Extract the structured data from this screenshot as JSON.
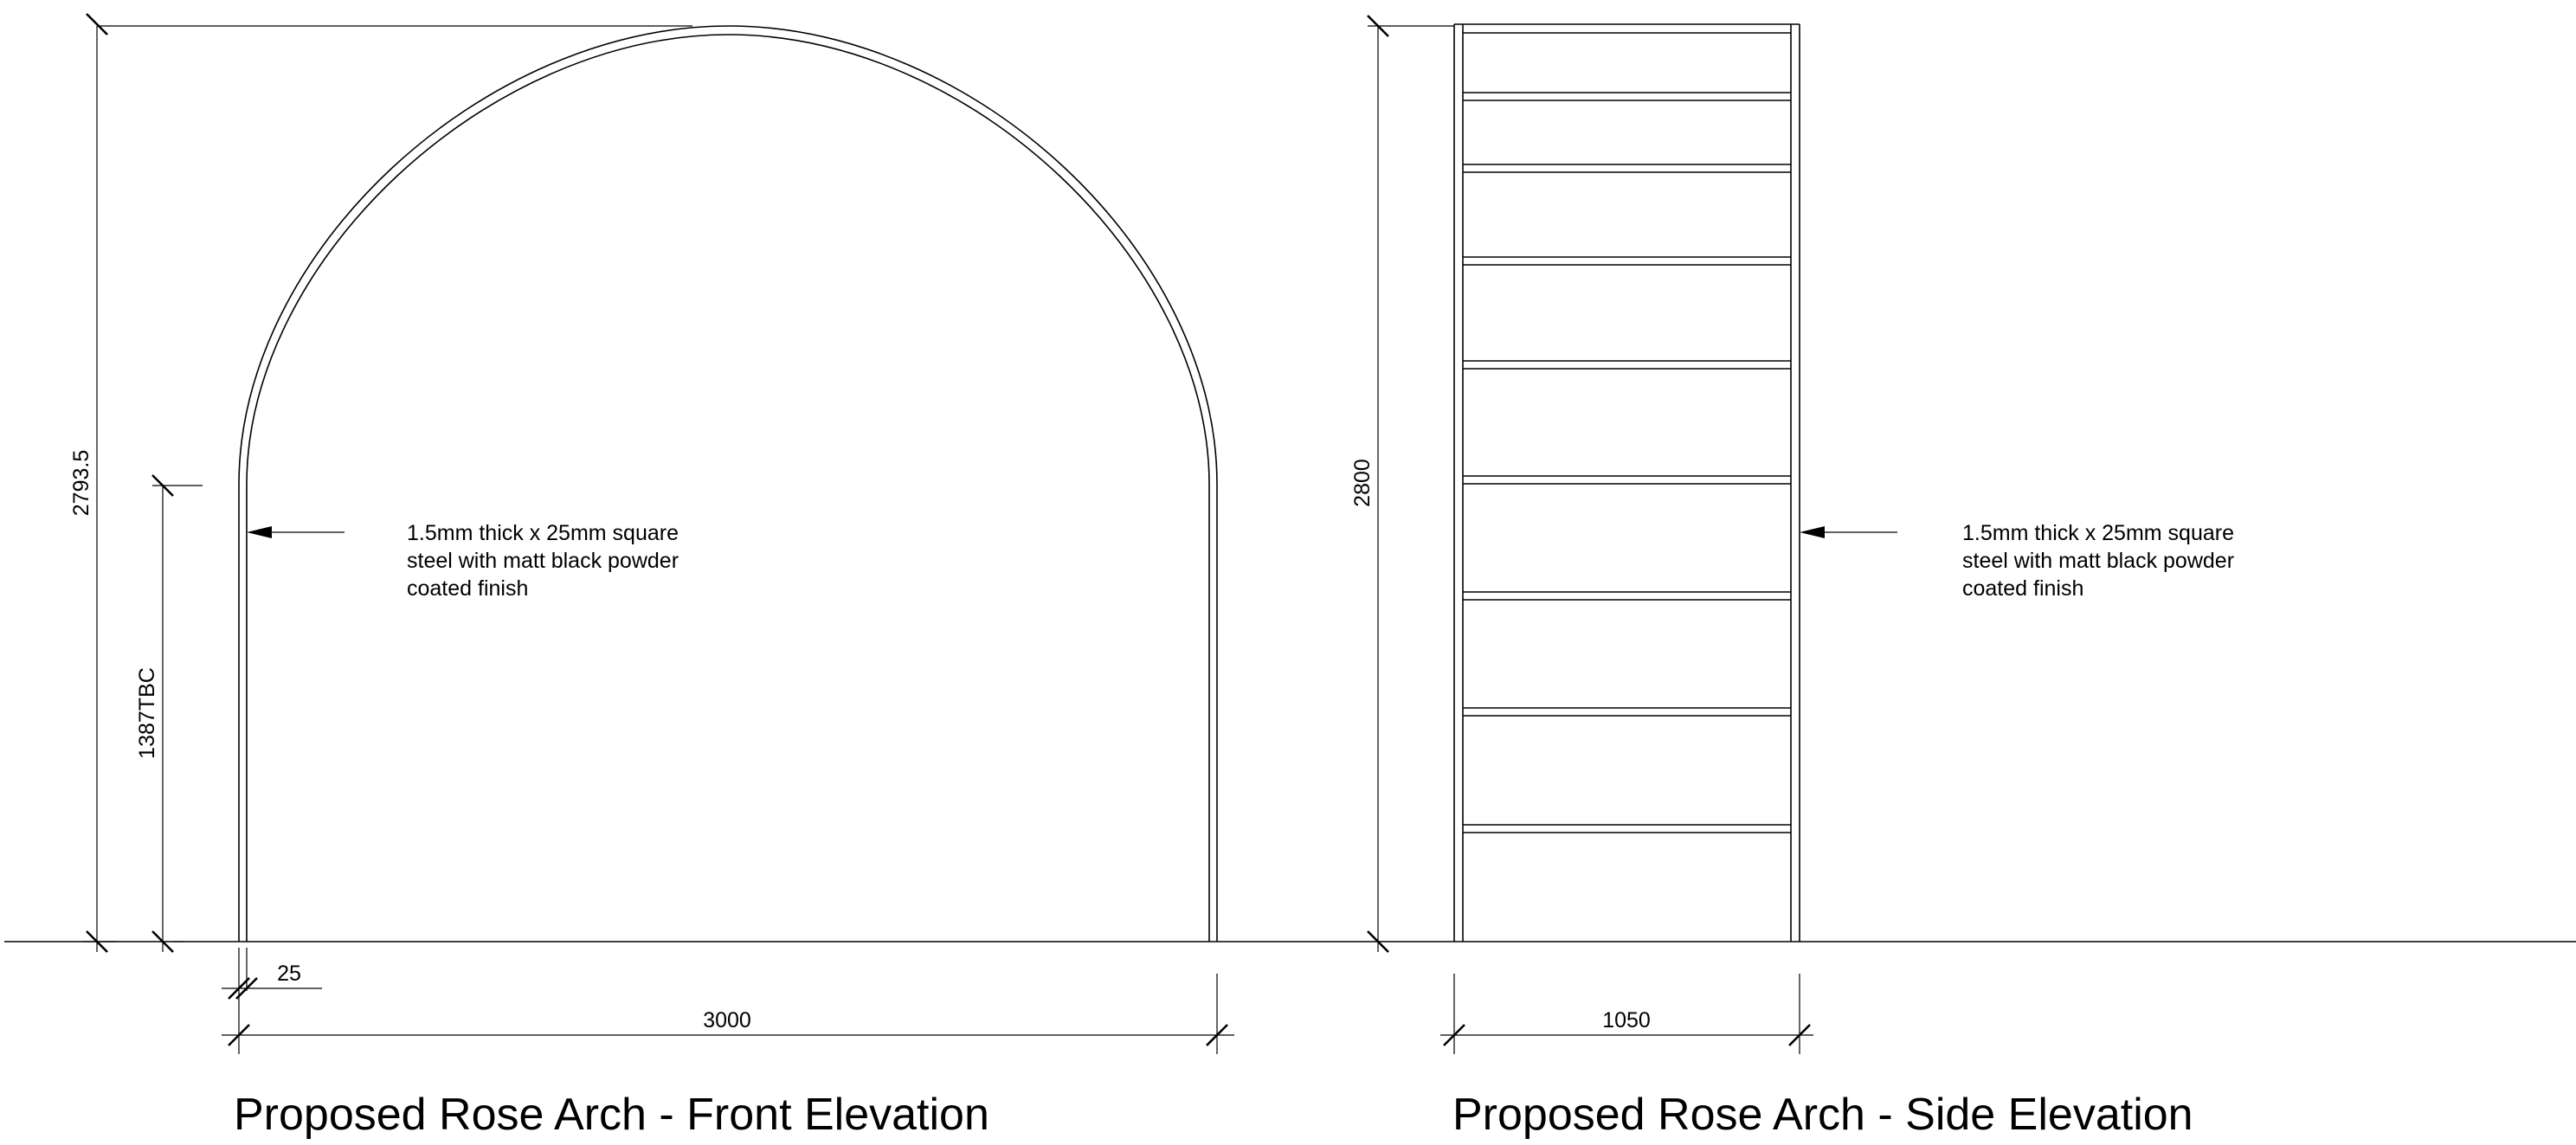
{
  "front": {
    "title": "Proposed Rose Arch - Front Elevation",
    "dimensions": {
      "overall_height": "2793.5",
      "leg_height": "1387TBC",
      "tube_width": "25",
      "width": "3000"
    },
    "note": [
      "1.5mm thick x 25mm square",
      "steel with matt black powder",
      "coated finish"
    ]
  },
  "side": {
    "title": "Proposed Rose Arch - Side Elevation",
    "dimensions": {
      "height": "2800",
      "width": "1050"
    },
    "note": [
      "1.5mm thick x 25mm square",
      "steel with matt black powder",
      "coated finish"
    ]
  }
}
